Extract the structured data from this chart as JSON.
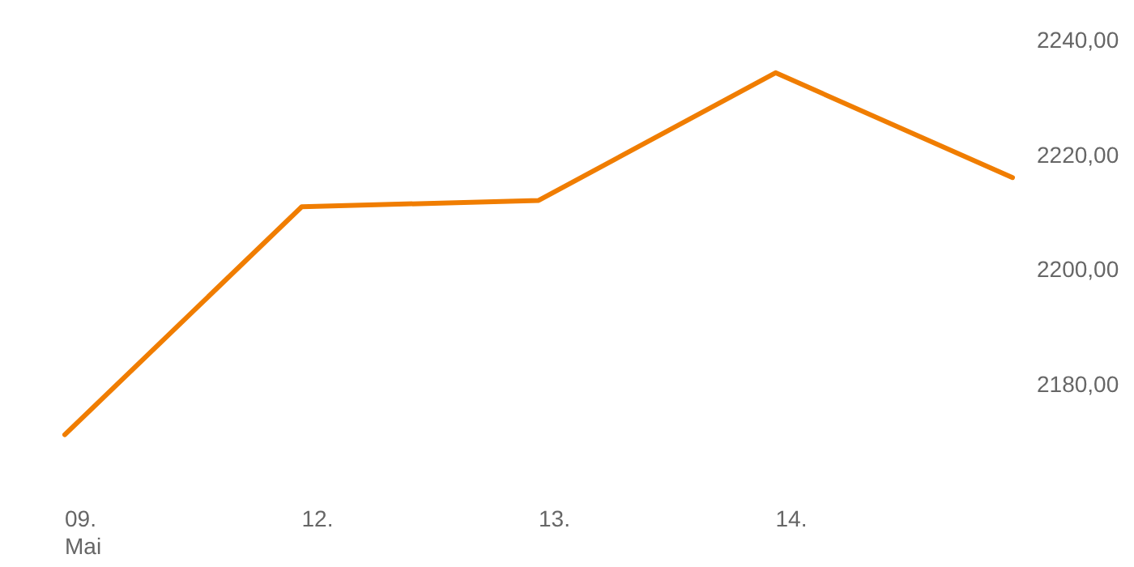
{
  "chart_data": {
    "type": "line",
    "categories": [
      "09.\nMai",
      "12.",
      "13.",
      "14.",
      null
    ],
    "series": [
      {
        "color": "#f07d00",
        "values": [
          2171.1,
          2210.9,
          2212.0,
          2234.3,
          2216.0
        ]
      }
    ],
    "ylim": [
      2148,
      2247
    ],
    "yticks": [
      {
        "value": 2180,
        "label": "2180,00"
      },
      {
        "value": 2200,
        "label": "2200,00"
      },
      {
        "value": 2220,
        "label": "2220,00"
      },
      {
        "value": 2240,
        "label": "2240,00"
      }
    ],
    "grid": false,
    "marker": "none",
    "line_style": "solid"
  }
}
